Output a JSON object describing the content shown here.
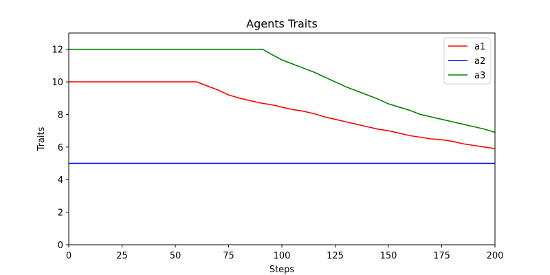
{
  "chart_data": {
    "type": "line",
    "title": "Agents Traits",
    "xlabel": "Steps",
    "ylabel": "Traits",
    "xlim": [
      0,
      200
    ],
    "ylim": [
      0,
      13
    ],
    "xticks": [
      0,
      25,
      50,
      75,
      100,
      125,
      150,
      175,
      200
    ],
    "yticks": [
      0,
      2,
      4,
      6,
      8,
      10,
      12
    ],
    "grid": false,
    "legend_position": "top-right",
    "series": [
      {
        "name": "a1",
        "color": "#ff0000",
        "x": [
          0,
          60,
          65,
          70,
          75,
          80,
          85,
          90,
          95,
          100,
          105,
          110,
          115,
          120,
          125,
          130,
          135,
          140,
          145,
          150,
          155,
          160,
          165,
          170,
          175,
          180,
          185,
          190,
          195,
          200
        ],
        "y": [
          10,
          10,
          9.75,
          9.5,
          9.2,
          9.0,
          8.85,
          8.7,
          8.6,
          8.45,
          8.3,
          8.2,
          8.05,
          7.85,
          7.7,
          7.55,
          7.4,
          7.25,
          7.1,
          7.0,
          6.85,
          6.7,
          6.6,
          6.5,
          6.45,
          6.35,
          6.2,
          6.1,
          6.0,
          5.9
        ]
      },
      {
        "name": "a2",
        "color": "#0000ff",
        "x": [
          0,
          200
        ],
        "y": [
          5,
          5
        ]
      },
      {
        "name": "a3",
        "color": "#008000",
        "x": [
          0,
          91,
          95,
          100,
          105,
          110,
          115,
          120,
          125,
          130,
          135,
          140,
          145,
          150,
          155,
          160,
          165,
          170,
          175,
          180,
          185,
          190,
          195,
          200
        ],
        "y": [
          12,
          12,
          11.7,
          11.35,
          11.1,
          10.85,
          10.6,
          10.3,
          10.0,
          9.7,
          9.45,
          9.2,
          8.95,
          8.65,
          8.45,
          8.25,
          8.0,
          7.85,
          7.7,
          7.55,
          7.4,
          7.25,
          7.1,
          6.9
        ]
      }
    ]
  }
}
